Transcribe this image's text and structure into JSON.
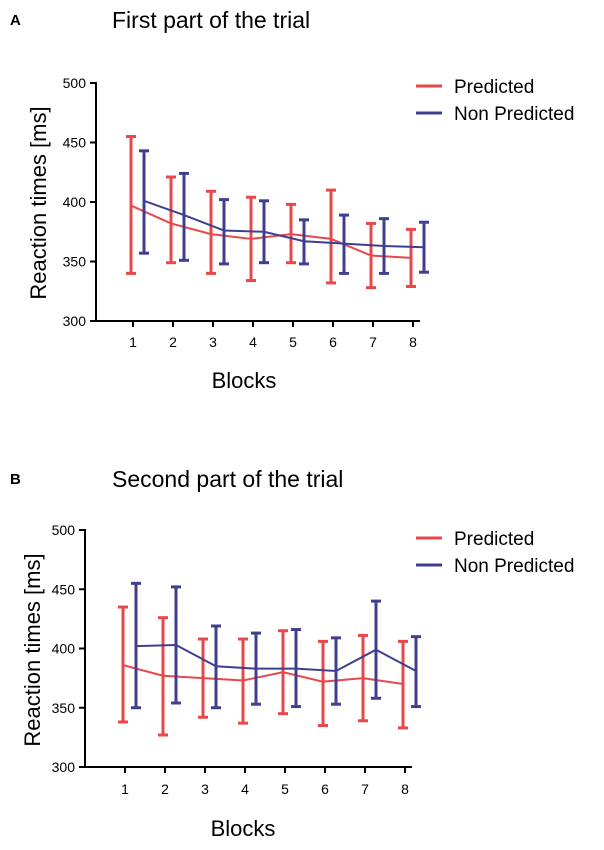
{
  "chart_data": [
    {
      "type": "line",
      "panel": "A",
      "title": "First part of the trial",
      "xlabel": "Blocks",
      "ylabel": "Reaction times  [ms]",
      "categories": [
        "1",
        "2",
        "3",
        "4",
        "5",
        "6",
        "7",
        "8"
      ],
      "ylim": [
        300,
        500
      ],
      "yticks": [
        "300",
        "350",
        "400",
        "450",
        "500"
      ],
      "legend": [
        "Predicted",
        "Non Predicted"
      ],
      "legend_position": "top-right",
      "series": [
        {
          "name": "Predicted",
          "color": "#e8484a",
          "values": [
            397,
            382,
            373,
            369,
            373,
            369,
            355,
            353
          ],
          "err_low": [
            340,
            349,
            340,
            334,
            349,
            332,
            328,
            329
          ],
          "err_high": [
            455,
            421,
            409,
            404,
            398,
            410,
            382,
            377
          ]
        },
        {
          "name": "Non Predicted",
          "color": "#3f3f8f",
          "values": [
            401,
            389,
            376,
            375,
            367,
            365,
            363,
            362
          ],
          "err_low": [
            357,
            351,
            348,
            349,
            348,
            340,
            340,
            341
          ],
          "err_high": [
            443,
            424,
            402,
            401,
            385,
            389,
            386,
            383
          ]
        }
      ]
    },
    {
      "type": "line",
      "panel": "B",
      "title": "Second part of the trial",
      "xlabel": "Blocks",
      "ylabel": "Reaction times  [ms]",
      "categories": [
        "1",
        "2",
        "3",
        "4",
        "5",
        "6",
        "7",
        "8"
      ],
      "ylim": [
        300,
        500
      ],
      "yticks": [
        "300",
        "350",
        "400",
        "450",
        "500"
      ],
      "legend": [
        "Predicted",
        "Non Predicted"
      ],
      "legend_position": "top-right",
      "series": [
        {
          "name": "Predicted",
          "color": "#e8484a",
          "values": [
            386,
            377,
            375,
            373,
            380,
            372,
            375,
            370
          ],
          "err_low": [
            338,
            327,
            342,
            337,
            345,
            335,
            339,
            333
          ],
          "err_high": [
            435,
            426,
            408,
            408,
            415,
            406,
            411,
            406
          ]
        },
        {
          "name": "Non Predicted",
          "color": "#3f3f8f",
          "values": [
            402,
            403,
            385,
            383,
            383,
            381,
            399,
            381
          ],
          "err_low": [
            350,
            354,
            350,
            353,
            351,
            353,
            358,
            351
          ],
          "err_high": [
            455,
            452,
            419,
            413,
            416,
            409,
            440,
            410
          ]
        }
      ]
    }
  ]
}
